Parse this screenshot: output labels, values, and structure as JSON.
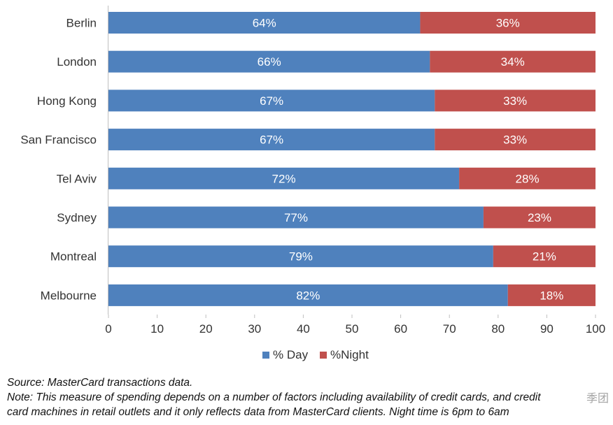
{
  "chart_data": {
    "type": "bar",
    "orientation": "horizontal",
    "stacked": true,
    "categories": [
      "Berlin",
      "London",
      "Hong Kong",
      "San Francisco",
      "Tel Aviv",
      "Sydney",
      "Montreal",
      "Melbourne"
    ],
    "series": [
      {
        "name": "% Day",
        "values": [
          64,
          66,
          67,
          67,
          72,
          77,
          79,
          82
        ],
        "labels": [
          "64%",
          "66%",
          "67%",
          "67%",
          "72%",
          "77%",
          "79%",
          "82%"
        ]
      },
      {
        "name": "%Night",
        "values": [
          36,
          34,
          33,
          33,
          28,
          23,
          21,
          18
        ],
        "labels": [
          "36%",
          "34%",
          "33%",
          "33%",
          "28%",
          "23%",
          "21%",
          "18%"
        ]
      }
    ],
    "xlim": [
      0,
      100
    ],
    "xticks": [
      "0",
      "10",
      "20",
      "30",
      "40",
      "50",
      "60",
      "70",
      "80",
      "90",
      "100"
    ],
    "grid": false,
    "legend_position": "bottom",
    "colors": {
      "day": "#4f81bd",
      "night": "#c0504d"
    }
  },
  "footnote": {
    "source": "Source: MasterCard transactions data.",
    "note_line1": "Note: This measure of spending depends on a number of factors including availability of credit cards, and credit",
    "note_line2": "card machines in retail outlets and it only reflects data from MasterCard clients.  Night time is 6pm to 6am"
  },
  "watermark": "季团"
}
